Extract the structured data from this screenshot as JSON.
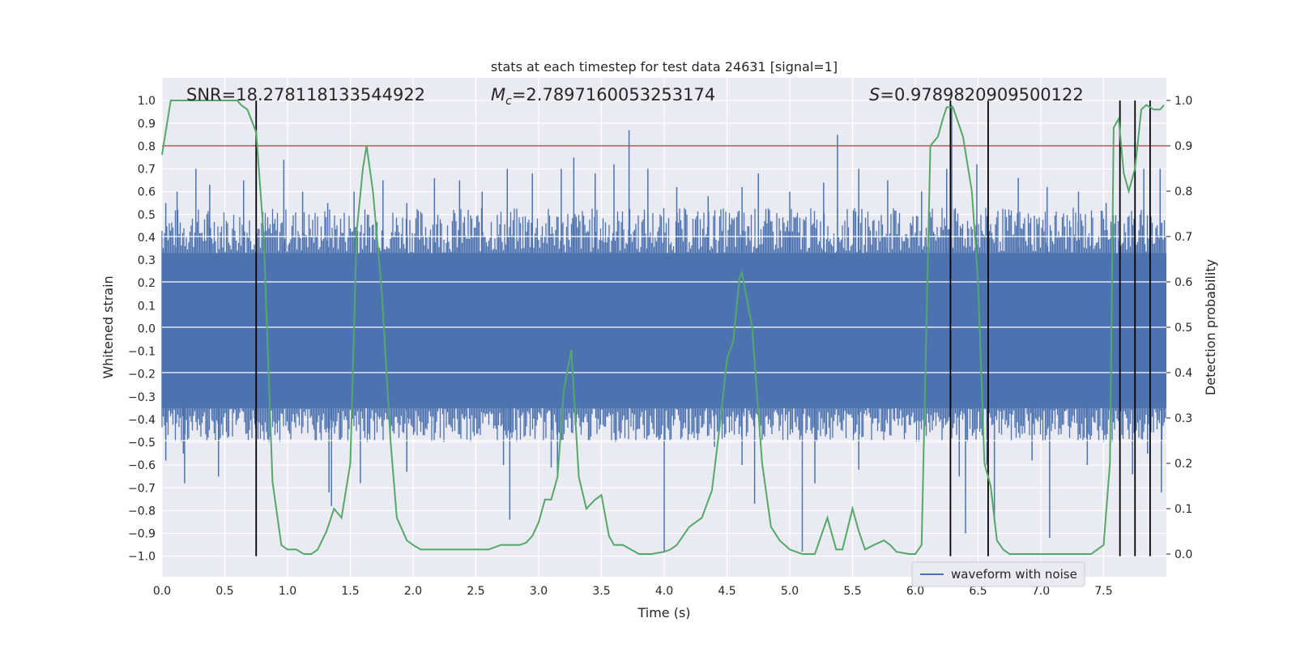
{
  "chart_data": {
    "type": "line",
    "title": "stats at each timestep for test data 24631 [signal=1]",
    "xlabel": "Time (s)",
    "ylabel_left": "Whitened strain",
    "ylabel_right": "Detection probability",
    "xlim": [
      0,
      8.0
    ],
    "ylim_left": [
      -1.09,
      1.1
    ],
    "ylim_right": [
      -0.05,
      1.05
    ],
    "x_ticks": [
      "0.0",
      "0.5",
      "1.0",
      "1.5",
      "2.0",
      "2.5",
      "3.0",
      "3.5",
      "4.0",
      "4.5",
      "5.0",
      "5.5",
      "6.0",
      "6.5",
      "7.0",
      "7.5"
    ],
    "left_ticks": [
      "1.0",
      "0.9",
      "0.8",
      "0.7",
      "0.6",
      "0.5",
      "0.4",
      "0.3",
      "0.2",
      "0.1",
      "0.0",
      "-0.1",
      "-0.2",
      "-0.3",
      "-0.4",
      "-0.5",
      "-0.6",
      "-0.7",
      "-0.8",
      "-0.9",
      "-1.0"
    ],
    "right_ticks": [
      "1.0",
      "0.9",
      "0.8",
      "0.7",
      "0.6",
      "0.5",
      "0.4",
      "0.3",
      "0.2",
      "0.1",
      "0.0"
    ],
    "annotations": {
      "snr": "SNR=18.278118133544922",
      "mc_symbol": "M",
      "mc_sub": "c",
      "mc_value": "=2.7897160053253174",
      "s_symbol": "S",
      "s_value": "=0.9789820909500122"
    },
    "threshold_probability": 0.9,
    "trigger_times": [
      0.75,
      6.28,
      6.58,
      7.63,
      7.75,
      7.87
    ],
    "waveform": {
      "name": "waveform with noise",
      "color": "#4c72b0",
      "band_upper": 0.33,
      "band_lower": -0.35,
      "positive_spikes": [
        [
          0.03,
          0.55
        ],
        [
          0.12,
          0.6
        ],
        [
          0.27,
          0.7
        ],
        [
          0.38,
          0.63
        ],
        [
          0.65,
          0.65
        ],
        [
          0.97,
          0.74
        ],
        [
          1.12,
          0.6
        ],
        [
          1.32,
          0.55
        ],
        [
          1.53,
          0.6
        ],
        [
          1.76,
          0.65
        ],
        [
          1.95,
          0.55
        ],
        [
          2.17,
          0.66
        ],
        [
          2.37,
          0.65
        ],
        [
          2.55,
          0.6
        ],
        [
          2.75,
          0.7
        ],
        [
          2.95,
          0.68
        ],
        [
          3.18,
          0.7
        ],
        [
          3.28,
          0.75
        ],
        [
          3.45,
          0.68
        ],
        [
          3.6,
          0.72
        ],
        [
          3.72,
          0.87
        ],
        [
          3.87,
          0.7
        ],
        [
          4.1,
          0.62
        ],
        [
          4.35,
          0.58
        ],
        [
          4.62,
          0.62
        ],
        [
          4.75,
          0.68
        ],
        [
          5.0,
          0.6
        ],
        [
          5.27,
          0.64
        ],
        [
          5.38,
          0.85
        ],
        [
          5.55,
          0.7
        ],
        [
          5.78,
          0.65
        ],
        [
          6.05,
          0.6
        ],
        [
          6.25,
          0.7
        ],
        [
          6.29,
          0.98
        ],
        [
          6.49,
          0.72
        ],
        [
          6.82,
          0.66
        ],
        [
          7.05,
          0.62
        ],
        [
          7.3,
          0.6
        ],
        [
          7.52,
          0.55
        ],
        [
          7.82,
          0.7
        ],
        [
          7.95,
          0.7
        ]
      ],
      "negative_spikes": [
        [
          0.03,
          -0.58
        ],
        [
          0.17,
          -0.55
        ],
        [
          0.18,
          -0.68
        ],
        [
          0.45,
          -0.65
        ],
        [
          0.74,
          -0.42
        ],
        [
          1.33,
          -0.72
        ],
        [
          1.35,
          -0.78
        ],
        [
          1.58,
          -0.68
        ],
        [
          1.95,
          -0.63
        ],
        [
          2.72,
          -0.6
        ],
        [
          2.77,
          -0.84
        ],
        [
          3.1,
          -0.61
        ],
        [
          3.15,
          -0.65
        ],
        [
          4.0,
          -0.98
        ],
        [
          4.4,
          -0.52
        ],
        [
          4.62,
          -0.6
        ],
        [
          4.72,
          -0.77
        ],
        [
          5.1,
          -0.98
        ],
        [
          5.2,
          -0.68
        ],
        [
          5.55,
          -0.62
        ],
        [
          6.35,
          -0.65
        ],
        [
          6.4,
          -0.9
        ],
        [
          6.57,
          -0.6
        ],
        [
          6.63,
          -0.85
        ],
        [
          6.93,
          -0.58
        ],
        [
          7.07,
          -0.92
        ],
        [
          7.37,
          -0.6
        ],
        [
          7.73,
          -0.64
        ],
        [
          7.85,
          -0.55
        ],
        [
          7.96,
          -0.72
        ]
      ]
    },
    "probability": {
      "color": "#55a868",
      "x": [
        0.0,
        0.07,
        0.13,
        0.2,
        0.3,
        0.4,
        0.5,
        0.6,
        0.63,
        0.68,
        0.75,
        0.81,
        0.88,
        0.95,
        1.0,
        1.07,
        1.13,
        1.19,
        1.24,
        1.31,
        1.37,
        1.43,
        1.5,
        1.55,
        1.6,
        1.63,
        1.68,
        1.75,
        1.82,
        1.87,
        1.95,
        2.0,
        2.06,
        2.2,
        2.3,
        2.5,
        2.6,
        2.7,
        2.75,
        2.85,
        2.9,
        2.95,
        3.0,
        3.05,
        3.1,
        3.15,
        3.2,
        3.26,
        3.32,
        3.38,
        3.45,
        3.5,
        3.56,
        3.6,
        3.67,
        3.8,
        3.9,
        4.0,
        4.05,
        4.1,
        4.2,
        4.3,
        4.38,
        4.45,
        4.5,
        4.55,
        4.6,
        4.62,
        4.7,
        4.78,
        4.85,
        4.92,
        5.0,
        5.1,
        5.2,
        5.3,
        5.37,
        5.42,
        5.5,
        5.55,
        5.6,
        5.67,
        5.75,
        5.8,
        5.85,
        5.95,
        6.0,
        6.05,
        6.12,
        6.18,
        6.22,
        6.25,
        6.3,
        6.38,
        6.45,
        6.5,
        6.55,
        6.6,
        6.65,
        6.7,
        6.75,
        6.85,
        7.0,
        7.2,
        7.4,
        7.5,
        7.55,
        7.58,
        7.62,
        7.66,
        7.7,
        7.75,
        7.8,
        7.84,
        7.9,
        7.95,
        7.98
      ],
      "y": [
        0.88,
        1.0,
        1.0,
        1.0,
        1.0,
        1.0,
        1.0,
        1.0,
        0.99,
        0.98,
        0.93,
        0.7,
        0.16,
        0.02,
        0.01,
        0.01,
        0.0,
        0.0,
        0.01,
        0.05,
        0.1,
        0.08,
        0.2,
        0.71,
        0.85,
        0.9,
        0.8,
        0.58,
        0.25,
        0.08,
        0.03,
        0.02,
        0.01,
        0.01,
        0.01,
        0.01,
        0.01,
        0.02,
        0.02,
        0.02,
        0.025,
        0.04,
        0.07,
        0.12,
        0.12,
        0.17,
        0.36,
        0.45,
        0.17,
        0.1,
        0.12,
        0.13,
        0.04,
        0.02,
        0.02,
        0.0,
        0.0,
        0.005,
        0.01,
        0.02,
        0.06,
        0.08,
        0.14,
        0.3,
        0.43,
        0.47,
        0.61,
        0.62,
        0.5,
        0.2,
        0.06,
        0.03,
        0.01,
        0.0,
        0.0,
        0.08,
        0.01,
        0.01,
        0.1,
        0.05,
        0.01,
        0.02,
        0.03,
        0.02,
        0.005,
        0.0,
        0.0,
        0.02,
        0.9,
        0.92,
        0.96,
        0.985,
        0.985,
        0.92,
        0.8,
        0.6,
        0.2,
        0.15,
        0.03,
        0.01,
        0.0,
        0.0,
        0.0,
        0.0,
        0.0,
        0.02,
        0.2,
        0.94,
        0.96,
        0.84,
        0.8,
        0.85,
        0.98,
        0.99,
        0.98,
        0.98,
        0.99
      ]
    }
  }
}
